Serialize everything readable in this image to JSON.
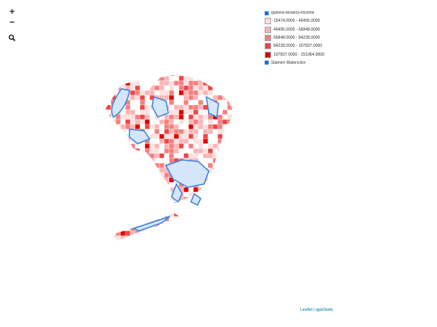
{
  "zoom_controls": {
    "zoom_in": "+",
    "zoom_out": "−"
  },
  "layers": [
    {
      "name": "queens-tenancy-income",
      "checked": true,
      "legend": [
        {
          "label": "15474.0000 - 49495.0000",
          "color": "#fde0dd"
        },
        {
          "label": "49495.0000 - 66848.0000",
          "color": "#fbb4b4"
        },
        {
          "label": "66848.0000 - 84228.0000",
          "color": "#f47f7f"
        },
        {
          "label": "84228.0000 - 107837.0000",
          "color": "#ee4444"
        },
        {
          "label": "107837.0000 - 151964.0000",
          "color": "#e00000"
        }
      ]
    },
    {
      "name": "Stamen Watercolor",
      "checked": true,
      "legend": []
    }
  ],
  "attribution": "Leaflet | qgis2web,"
}
